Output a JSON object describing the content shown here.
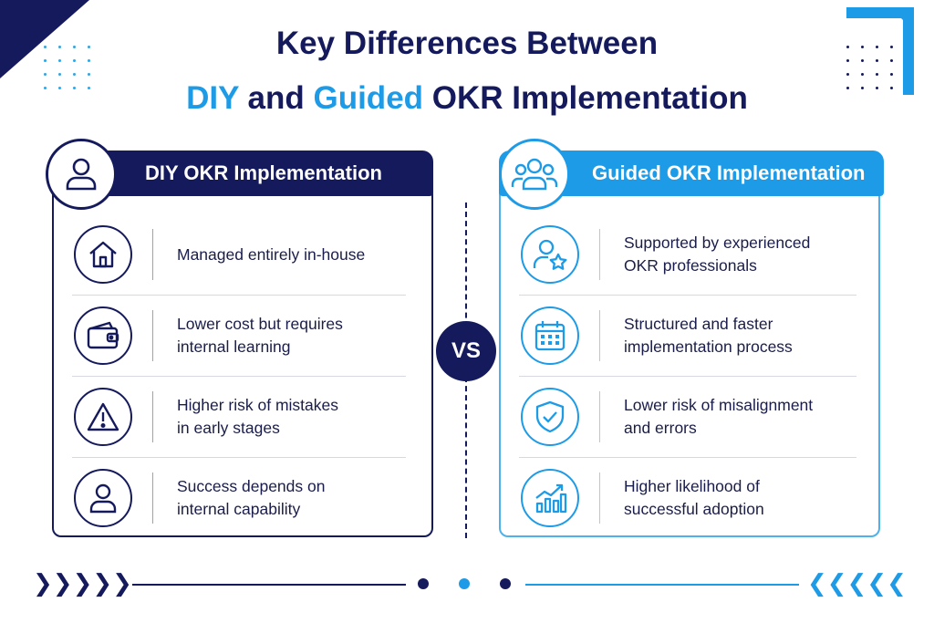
{
  "title": {
    "line1": "Key Differences Between",
    "diy_word": "DIY",
    "and_word": " and ",
    "guided_word": "Guided",
    "rest": " OKR Implementation"
  },
  "diy": {
    "header": "DIY OKR Implementation",
    "header_icon": "user-icon",
    "items": [
      {
        "icon": "house-icon",
        "text": "Managed entirely in-house"
      },
      {
        "icon": "wallet-icon",
        "text": "Lower cost but requires\ninternal learning"
      },
      {
        "icon": "warning-icon",
        "text": "Higher risk of mistakes\nin early stages"
      },
      {
        "icon": "person-icon",
        "text": "Success depends on\ninternal capability"
      }
    ]
  },
  "guided": {
    "header": "Guided OKR Implementation",
    "header_icon": "team-icon",
    "items": [
      {
        "icon": "expert-star-icon",
        "text": "Supported by experienced\nOKR professionals"
      },
      {
        "icon": "calendar-icon",
        "text": "Structured and faster\nimplementation process"
      },
      {
        "icon": "shield-check-icon",
        "text": "Lower risk of misalignment\nand errors"
      },
      {
        "icon": "growth-chart-icon",
        "text": "Higher likelihood of\nsuccessful adoption"
      }
    ]
  },
  "vs_label": "VS",
  "colors": {
    "navy": "#151a5c",
    "blue": "#1e9be6"
  }
}
